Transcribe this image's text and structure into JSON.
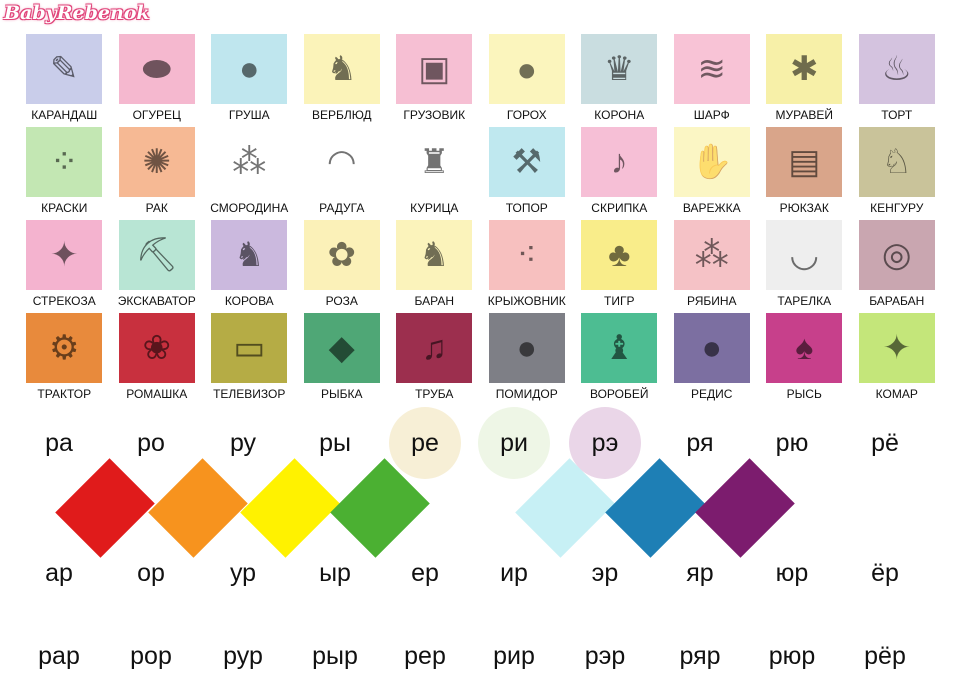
{
  "logo": "BabyRebenok",
  "cards": [
    {
      "word": "КАРАНДАШ",
      "icon": "pencil-icon",
      "color": "#c9cdea"
    },
    {
      "word": "ОГУРЕЦ",
      "icon": "cucumber-icon",
      "color": "#f5b8cf"
    },
    {
      "word": "ГРУША",
      "icon": "pear-icon",
      "color": "#bfe6ee"
    },
    {
      "word": "ВЕРБЛЮД",
      "icon": "camel-icon",
      "color": "#fbf3b9"
    },
    {
      "word": "ГРУЗОВИК",
      "icon": "truck-icon",
      "color": "#f6bfd3"
    },
    {
      "word": "ГОРОХ",
      "icon": "peas-icon",
      "color": "#fbf5bd"
    },
    {
      "word": "КОРОНА",
      "icon": "crown-icon",
      "color": "#c9dde0"
    },
    {
      "word": "ШАРФ",
      "icon": "scarf-icon",
      "color": "#f8c3d6"
    },
    {
      "word": "МУРАВЕЙ",
      "icon": "ant-icon",
      "color": "#f7f0a8"
    },
    {
      "word": "ТОРТ",
      "icon": "cake-icon",
      "color": "#d4c3df"
    },
    {
      "word": "КРАСКИ",
      "icon": "paints-icon",
      "color": "#c3e7b3"
    },
    {
      "word": "РАК",
      "icon": "crayfish-icon",
      "color": "#f6b994"
    },
    {
      "word": "СМОРОДИНА",
      "icon": "currant-icon",
      "color": "#ffffff"
    },
    {
      "word": "РАДУГА",
      "icon": "rainbow-icon",
      "color": "#ffffff"
    },
    {
      "word": "КУРИЦА",
      "icon": "hen-icon",
      "color": "#ffffff"
    },
    {
      "word": "ТОПОР",
      "icon": "axe-icon",
      "color": "#bfe8ef"
    },
    {
      "word": "СКРИПКА",
      "icon": "violin-icon",
      "color": "#f6bfd6"
    },
    {
      "word": "ВАРЕЖКА",
      "icon": "mitten-icon",
      "color": "#fbf6c4"
    },
    {
      "word": "РЮКЗАК",
      "icon": "backpack-icon",
      "color": "#d9a58a"
    },
    {
      "word": "КЕНГУРУ",
      "icon": "kangaroo-icon",
      "color": "#c9c39a"
    },
    {
      "word": "СТРЕКОЗА",
      "icon": "dragonfly-icon",
      "color": "#f4b3cf"
    },
    {
      "word": "ЭКСКАВАТОР",
      "icon": "excavator-icon",
      "color": "#b8e5d4"
    },
    {
      "word": "КОРОВА",
      "icon": "cow-icon",
      "color": "#cbb9de"
    },
    {
      "word": "РОЗА",
      "icon": "rose-icon",
      "color": "#fbf1b8"
    },
    {
      "word": "БАРАН",
      "icon": "ram-icon",
      "color": "#fbf3bb"
    },
    {
      "word": "КРЫЖОВНИК",
      "icon": "gooseberry-icon",
      "color": "#f7c0bf"
    },
    {
      "word": "ТИГР",
      "icon": "tiger-icon",
      "color": "#f9ed8a"
    },
    {
      "word": "РЯБИНА",
      "icon": "rowan-icon",
      "color": "#f5c2c6"
    },
    {
      "word": "ТАРЕЛКА",
      "icon": "plate-icon",
      "color": "#eeeeee"
    },
    {
      "word": "БАРАБАН",
      "icon": "drum-icon",
      "color": "#c9a6b0"
    },
    {
      "word": "ТРАКТОР",
      "icon": "tractor-icon",
      "color": "#e88a3c"
    },
    {
      "word": "РОМАШКА",
      "icon": "daisy-icon",
      "color": "#c8303e"
    },
    {
      "word": "ТЕЛЕВИЗОР",
      "icon": "tv-icon",
      "color": "#b5ac45"
    },
    {
      "word": "РЫБКА",
      "icon": "fish-icon",
      "color": "#4fa776"
    },
    {
      "word": "ТРУБА",
      "icon": "trumpet-icon",
      "color": "#9c2f4e"
    },
    {
      "word": "ПОМИДОР",
      "icon": "tomato-icon",
      "color": "#7e7f86"
    },
    {
      "word": "ВОРОБЕЙ",
      "icon": "sparrow-icon",
      "color": "#4dbd92"
    },
    {
      "word": "РЕДИС",
      "icon": "radish-icon",
      "color": "#7c6fa1"
    },
    {
      "word": "РЫСЬ",
      "icon": "lynx-icon",
      "color": "#c7408b"
    },
    {
      "word": "КОМАР",
      "icon": "mosquito-icon",
      "color": "#c4e67a"
    }
  ],
  "syllables_open": [
    "ра",
    "ро",
    "ру",
    "ры",
    "ре",
    "ри",
    "рэ",
    "ря",
    "рю",
    "рё"
  ],
  "syllables_closed": [
    "ар",
    "ор",
    "ур",
    "ыр",
    "ер",
    "ир",
    "эр",
    "яр",
    "юр",
    "ёр"
  ],
  "syllables_wrapped": [
    "рар",
    "рор",
    "рур",
    "рыр",
    "рер",
    "рир",
    "рэр",
    "ряр",
    "рюр",
    "рёр"
  ],
  "highlight_color": "#e8322f",
  "vowel_circles": [
    "#f7efd6",
    "#eef6e6",
    "#ead6e8"
  ],
  "diamonds": [
    "#e01b1b",
    "#f7931e",
    "#fff200",
    "#4bb032",
    "#c7f0f5",
    "#1e7fb5",
    "#7c1c6e"
  ]
}
